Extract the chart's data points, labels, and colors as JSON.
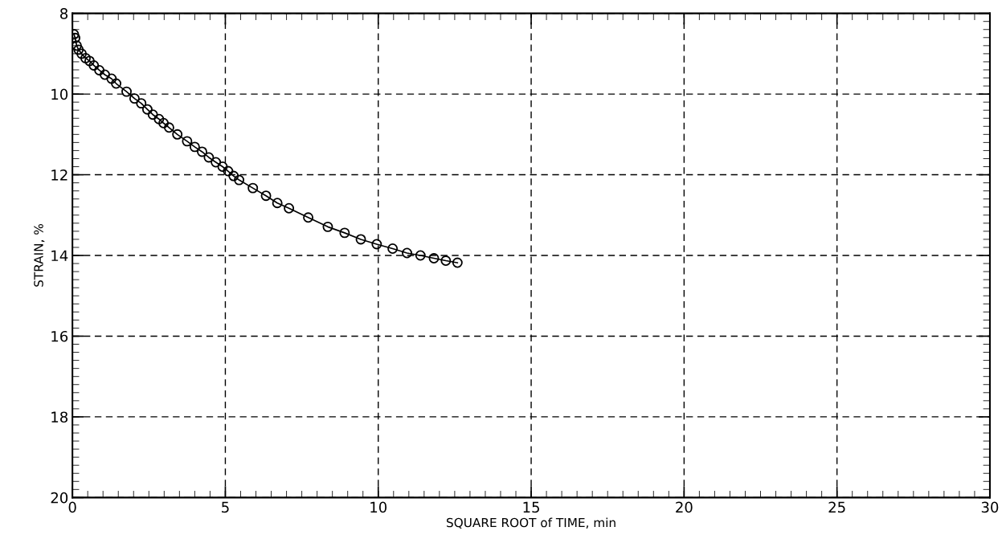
{
  "chart_data": {
    "type": "line",
    "xlabel": "SQUARE ROOT of TIME, min",
    "ylabel": "STRAIN, %",
    "xlim": [
      0,
      30
    ],
    "xticks": [
      0,
      5,
      10,
      15,
      20,
      25,
      30
    ],
    "ylim": [
      20,
      8
    ],
    "yticks": [
      8,
      10,
      12,
      14,
      16,
      18,
      20
    ],
    "grid": true,
    "marker": "circle",
    "line_style": "solid",
    "series": [
      {
        "color": "#000000",
        "x": [
          0.05,
          0.09,
          0.14,
          0.2,
          0.3,
          0.43,
          0.56,
          0.7,
          0.88,
          1.06,
          1.28,
          1.43,
          1.77,
          2.03,
          2.25,
          2.45,
          2.63,
          2.83,
          2.98,
          3.16,
          3.43,
          3.75,
          4.0,
          4.24,
          4.46,
          4.69,
          4.91,
          5.09,
          5.27,
          5.45,
          5.9,
          6.33,
          6.7,
          7.08,
          7.71,
          8.35,
          8.9,
          9.43,
          9.95,
          10.47,
          10.94,
          11.38,
          11.82,
          12.21,
          12.59
        ],
        "values": [
          8.52,
          8.61,
          8.8,
          8.9,
          9.0,
          9.11,
          9.18,
          9.29,
          9.41,
          9.52,
          9.62,
          9.74,
          9.94,
          10.11,
          10.23,
          10.38,
          10.51,
          10.62,
          10.72,
          10.83,
          11.0,
          11.17,
          11.31,
          11.43,
          11.57,
          11.69,
          11.8,
          11.91,
          12.03,
          12.13,
          12.33,
          12.52,
          12.7,
          12.83,
          13.06,
          13.29,
          13.44,
          13.6,
          13.72,
          13.83,
          13.94,
          14.0,
          14.07,
          14.13,
          14.18
        ]
      }
    ]
  }
}
